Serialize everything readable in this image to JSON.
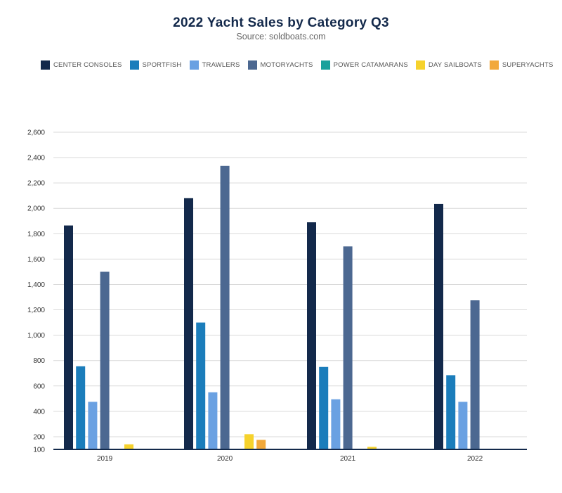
{
  "chart_data": {
    "type": "bar",
    "title": "2022 Yacht Sales by Category Q3",
    "subtitle": "Source: soldboats.com",
    "xlabel": "",
    "ylabel": "",
    "categories": [
      "2019",
      "2020",
      "2021",
      "2022"
    ],
    "ylim": [
      100,
      2600
    ],
    "yticks": [
      100,
      200,
      400,
      600,
      800,
      1000,
      1200,
      1400,
      1600,
      1800,
      2000,
      2200,
      2400,
      2600
    ],
    "ytick_labels": [
      "100",
      "200",
      "400",
      "600",
      "800",
      "1,000",
      "1,200",
      "1,400",
      "1,600",
      "1,800",
      "2,000",
      "2,200",
      "2,400",
      "2,600"
    ],
    "grid": true,
    "legend_position": "top",
    "series": [
      {
        "name": "CENTER CONSOLES",
        "color": "#13294b",
        "values": [
          1865,
          2080,
          1890,
          2035
        ]
      },
      {
        "name": "SPORTFISH",
        "color": "#1b7dbb",
        "values": [
          755,
          1100,
          750,
          685
        ]
      },
      {
        "name": "TRAWLERS",
        "color": "#6aa1e2",
        "values": [
          475,
          550,
          495,
          475
        ]
      },
      {
        "name": "MOTORYACHTS",
        "color": "#4c6891",
        "values": [
          1500,
          2335,
          1700,
          1275
        ]
      },
      {
        "name": "POWER CATAMARANS",
        "color": "#1aa19c",
        "values": [
          42,
          20,
          8,
          10
        ]
      },
      {
        "name": "DAY SAILBOATS",
        "color": "#f6d22c",
        "values": [
          140,
          220,
          120,
          85
        ]
      },
      {
        "name": "SUPERYACHTS",
        "color": "#f2a93b",
        "values": [
          25,
          175,
          70,
          35
        ]
      }
    ]
  }
}
